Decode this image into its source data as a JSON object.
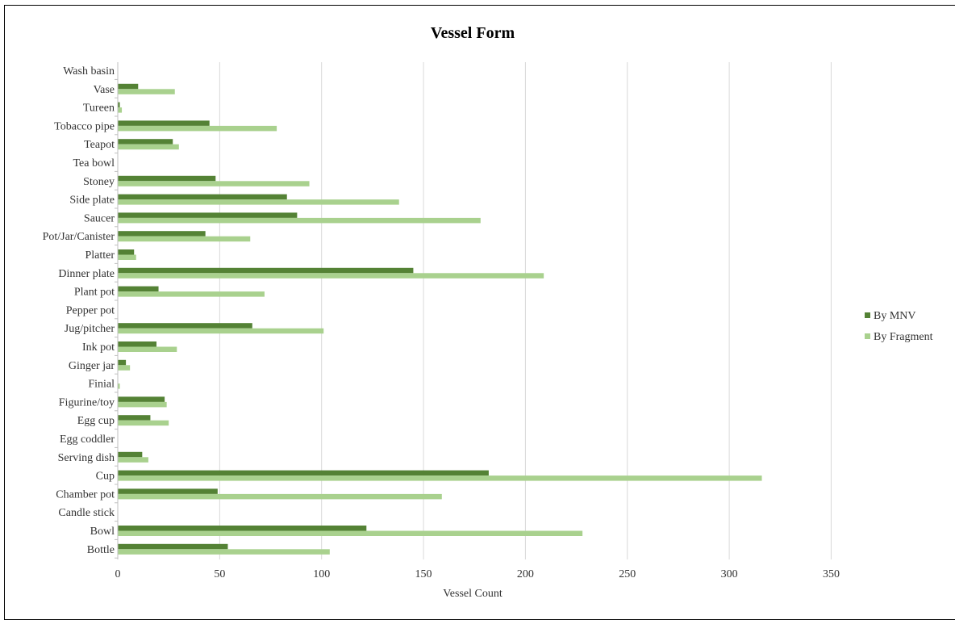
{
  "chart_data": {
    "type": "bar",
    "orientation": "horizontal",
    "title": "Vessel Form",
    "xlabel": "Vessel Count",
    "ylabel": "",
    "xlim": [
      0,
      350
    ],
    "xticks": [
      0,
      50,
      100,
      150,
      200,
      250,
      300,
      350
    ],
    "grid": true,
    "legend_position": "right",
    "categories": [
      "Wash basin",
      "Vase",
      "Tureen",
      "Tobacco pipe",
      "Teapot",
      "Tea bowl",
      "Stoney",
      "Side plate",
      "Saucer",
      "Pot/Jar/Canister",
      "Platter",
      "Dinner plate",
      "Plant pot",
      "Pepper pot",
      "Jug/pitcher",
      "Ink pot",
      "Ginger jar",
      "Finial",
      "Figurine/toy",
      "Egg cup",
      "Egg coddler",
      "Serving dish",
      "Cup",
      "Chamber pot",
      "Candle stick",
      "Bowl",
      "Bottle"
    ],
    "series": [
      {
        "name": "By MNV",
        "color": "#548235",
        "values": [
          0,
          10,
          1,
          45,
          27,
          0,
          48,
          83,
          88,
          43,
          8,
          145,
          20,
          0,
          66,
          19,
          4,
          0,
          23,
          16,
          0,
          12,
          182,
          49,
          0,
          122,
          54
        ]
      },
      {
        "name": "By Fragment",
        "color": "#a9d18e",
        "values": [
          0,
          28,
          2,
          78,
          30,
          0,
          94,
          138,
          178,
          65,
          9,
          209,
          72,
          0,
          101,
          29,
          6,
          1,
          24,
          25,
          0,
          15,
          316,
          159,
          0,
          228,
          104
        ]
      }
    ]
  }
}
